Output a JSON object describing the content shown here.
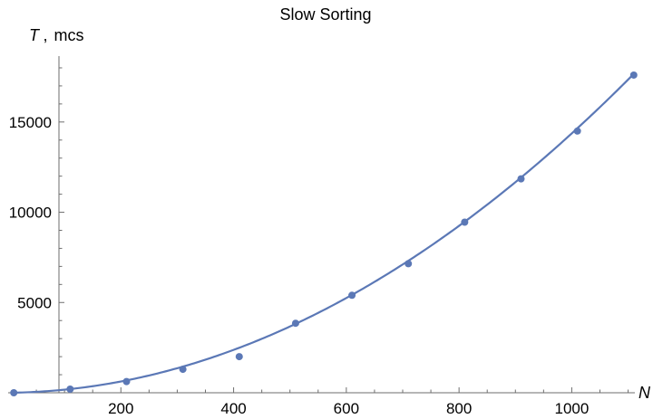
{
  "chart_data": {
    "type": "scatter",
    "title": "Slow Sorting",
    "ylabel_symbol": "T",
    "ylabel_unit": "mcs",
    "xlabel": "N",
    "xlim": [
      0,
      1120
    ],
    "ylim": [
      0,
      18500
    ],
    "x_ticks": [
      200,
      400,
      600,
      800,
      1000
    ],
    "y_ticks": [
      5000,
      10000,
      15000
    ],
    "x_tick_labels": [
      "200",
      "400",
      "600",
      "800",
      "1000"
    ],
    "y_tick_labels": [
      "5000",
      "10000",
      "15000"
    ],
    "grid": false,
    "series": [
      {
        "kind": "points",
        "color": "#5b78b6",
        "points": [
          [
            10,
            0
          ],
          [
            110,
            200
          ],
          [
            210,
            620
          ],
          [
            310,
            1300
          ],
          [
            410,
            2000
          ],
          [
            510,
            3850
          ],
          [
            610,
            5400
          ],
          [
            710,
            7150
          ],
          [
            810,
            9450
          ],
          [
            910,
            11850
          ],
          [
            1010,
            14500
          ],
          [
            1110,
            17600
          ]
        ]
      },
      {
        "kind": "fit-curve",
        "color": "#5b78b6",
        "model": "quadratic",
        "coefficients": {
          "a": 0.01405,
          "b": 0.318,
          "c": 0
        },
        "x_range": [
          10,
          1110
        ]
      }
    ]
  }
}
